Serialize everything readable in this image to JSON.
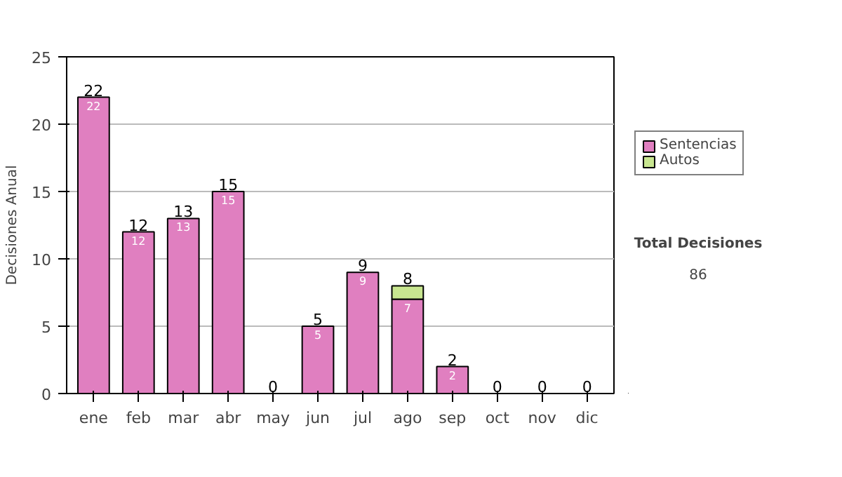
{
  "chart_data": {
    "type": "bar",
    "ylabel": "Decisiones Anual",
    "categories": [
      "ene",
      "feb",
      "mar",
      "abr",
      "may",
      "jun",
      "jul",
      "ago",
      "sep",
      "oct",
      "nov",
      "dic"
    ],
    "stacked": true,
    "series": [
      {
        "name": "Sentencias",
        "color": "#e07fc0",
        "values": [
          22,
          12,
          13,
          15,
          0,
          5,
          9,
          7,
          2,
          0,
          0,
          0
        ],
        "value_labels": [
          "22",
          "12",
          "13",
          "15",
          null,
          "5",
          "9",
          "7",
          "2",
          null,
          null,
          null
        ]
      },
      {
        "name": "Autos",
        "color": "#c8e690",
        "values": [
          0,
          0,
          0,
          0,
          0,
          0,
          0,
          1,
          0,
          0,
          0,
          0
        ]
      }
    ],
    "totals": [
      "22",
      "12",
      "13",
      "15",
      "0",
      "5",
      "9",
      "8",
      "2",
      "0",
      "0",
      "0"
    ],
    "ylim": [
      0,
      25
    ],
    "yticks": [
      0,
      5,
      10,
      15,
      20,
      25
    ],
    "grid": "y",
    "legend": "right",
    "annotations": [
      "Total Decisiones",
      "86"
    ]
  }
}
